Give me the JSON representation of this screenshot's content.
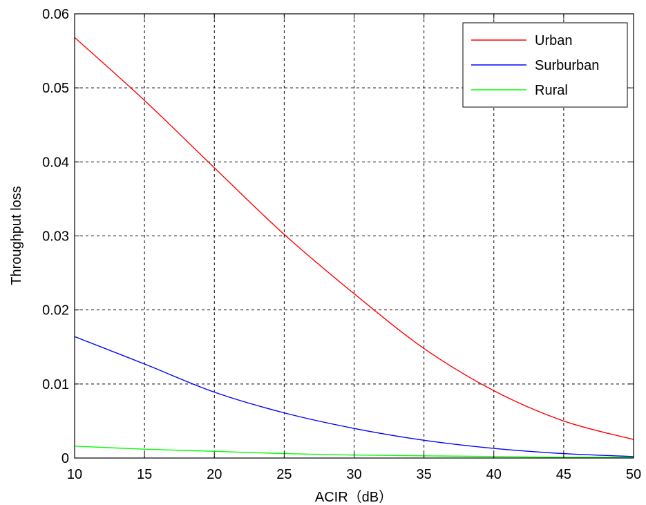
{
  "chart_data": {
    "type": "line",
    "title": "",
    "xlabel": "ACIR（dB）",
    "ylabel": "Throughput loss",
    "xlim": [
      10,
      50
    ],
    "ylim": [
      0,
      0.06
    ],
    "xticks": [
      10,
      15,
      20,
      25,
      30,
      35,
      40,
      45,
      50
    ],
    "yticks": [
      0,
      0.01,
      0.02,
      0.03,
      0.04,
      0.05,
      0.06
    ],
    "xtick_labels": [
      "10",
      "15",
      "20",
      "25",
      "30",
      "35",
      "40",
      "45",
      "50"
    ],
    "ytick_labels": [
      "0",
      "0.01",
      "0.02",
      "0.03",
      "0.04",
      "0.05",
      "0.06"
    ],
    "grid": true,
    "legend_position": "top-right",
    "x": [
      10,
      15,
      20,
      25,
      30,
      35,
      40,
      45,
      50
    ],
    "series": [
      {
        "name": "Urban",
        "color": "#ff0000",
        "values": [
          0.0568,
          0.0483,
          0.0392,
          0.0302,
          0.0222,
          0.0148,
          0.0091,
          0.005,
          0.0025
        ]
      },
      {
        "name": "Surburban",
        "color": "#0000ff",
        "values": [
          0.0164,
          0.0127,
          0.0089,
          0.0061,
          0.004,
          0.0024,
          0.0013,
          0.0006,
          0.0002
        ]
      },
      {
        "name": "Rural",
        "color": "#00ff00",
        "values": [
          0.0016,
          0.0012,
          0.0009,
          0.0006,
          0.0004,
          0.0003,
          0.0002,
          0.0001,
          0.0001
        ]
      }
    ]
  }
}
